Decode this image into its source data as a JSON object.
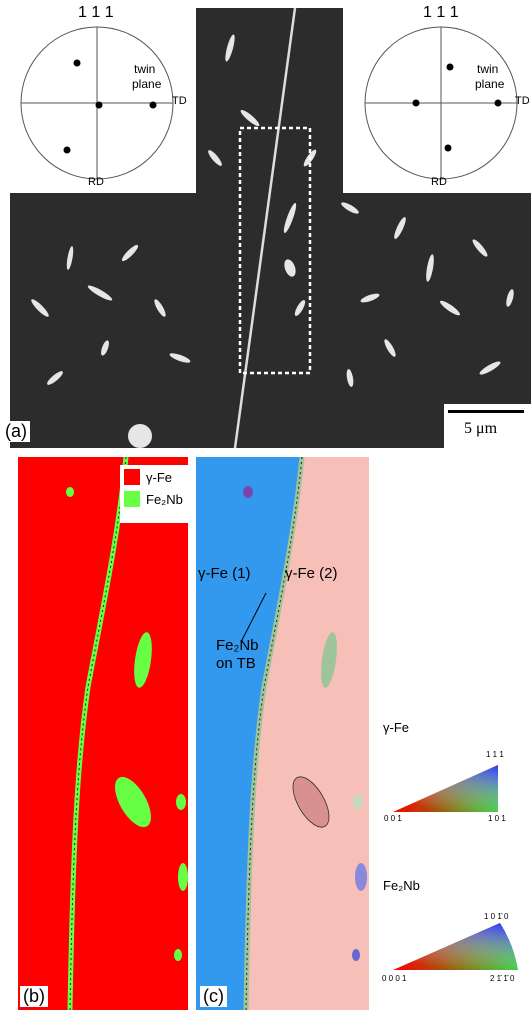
{
  "panel_a": {
    "label": "(a)",
    "scale_bar": "5 μm",
    "pole_figure_left": {
      "title": "1 1 1",
      "twin": "twin",
      "plane": "plane",
      "td": "TD",
      "rd": "RD"
    },
    "pole_figure_right": {
      "title": "1 1 1",
      "twin": "twin",
      "plane": "plane",
      "td": "TD",
      "rd": "RD"
    }
  },
  "panel_b": {
    "label": "(b)",
    "legend": [
      {
        "text": "γ-Fe",
        "color": "#ff0000"
      },
      {
        "text": "Fe₂Nb",
        "color": "#66ff44"
      }
    ]
  },
  "panel_c": {
    "label": "(c)",
    "grain1": "γ-Fe (1)",
    "grain2": "γ-Fe (2)",
    "precip_line1": "Fe₂Nb",
    "precip_line2": "on TB"
  },
  "ipf_fcc": {
    "title": "γ-Fe",
    "top": "1 1 1",
    "left": "0 0 1",
    "right": "1 0 1"
  },
  "ipf_hex": {
    "title": "Fe₂Nb",
    "top": "1 0 1̄ 0",
    "left": "0 0 0 1",
    "right": "2 1̄ 1̄ 0"
  },
  "colors": {
    "gamma_fe": "#ff0000",
    "fe2nb": "#66ff44",
    "grain1": "#3399ee",
    "grain2": "#f6c0b8"
  }
}
